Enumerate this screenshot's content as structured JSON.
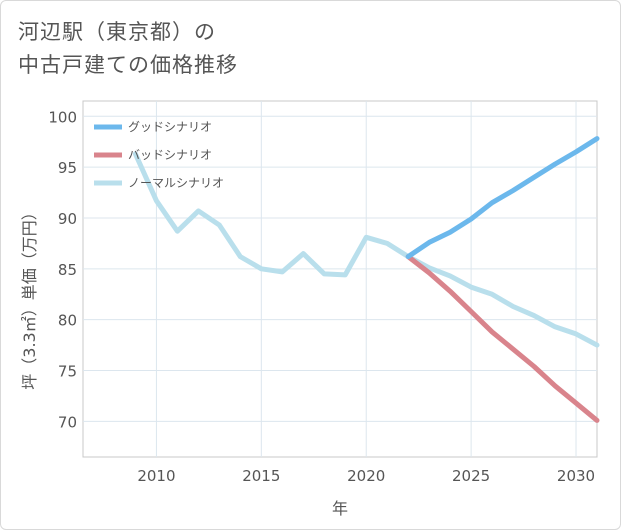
{
  "title_line1": "河辺駅（東京都）の",
  "title_line2": "中古戸建ての価格推移",
  "chart_data": {
    "type": "line",
    "xlabel": "年",
    "ylabel": "坪（3.3㎡）単価（万円）",
    "xlim": [
      2006.5,
      2031
    ],
    "ylim": [
      66.5,
      101.5
    ],
    "xticks": [
      2010,
      2015,
      2020,
      2025,
      2030
    ],
    "yticks": [
      70,
      75,
      80,
      85,
      90,
      95,
      100
    ],
    "legend_position": "top-left",
    "series": [
      {
        "name": "グッドシナリオ",
        "color": "#6cb8ec",
        "x": [
          2022,
          2023,
          2024,
          2025,
          2026,
          2027,
          2028,
          2029,
          2030,
          2031
        ],
        "y": [
          86.2,
          87.6,
          88.6,
          89.9,
          91.5,
          92.7,
          94.0,
          95.3,
          96.5,
          97.8
        ]
      },
      {
        "name": "バッドシナリオ",
        "color": "#d9848c",
        "x": [
          2022,
          2023,
          2024,
          2025,
          2026,
          2027,
          2028,
          2029,
          2030,
          2031
        ],
        "y": [
          86.2,
          84.6,
          82.8,
          80.8,
          78.8,
          77.1,
          75.4,
          73.5,
          71.8,
          70.1
        ]
      },
      {
        "name": "ノーマルシナリオ",
        "color": "#b9dfec",
        "x": [
          2009,
          2010,
          2011,
          2012,
          2013,
          2014,
          2015,
          2016,
          2017,
          2018,
          2019,
          2020,
          2021,
          2022,
          2023,
          2024,
          2025,
          2026,
          2027,
          2028,
          2029,
          2030,
          2031
        ],
        "y": [
          96.3,
          91.7,
          88.7,
          90.7,
          89.3,
          86.2,
          85.0,
          84.7,
          86.5,
          84.5,
          84.4,
          88.1,
          87.5,
          86.2,
          85.1,
          84.3,
          83.2,
          82.5,
          81.3,
          80.4,
          79.3,
          78.6,
          77.5
        ]
      }
    ]
  }
}
